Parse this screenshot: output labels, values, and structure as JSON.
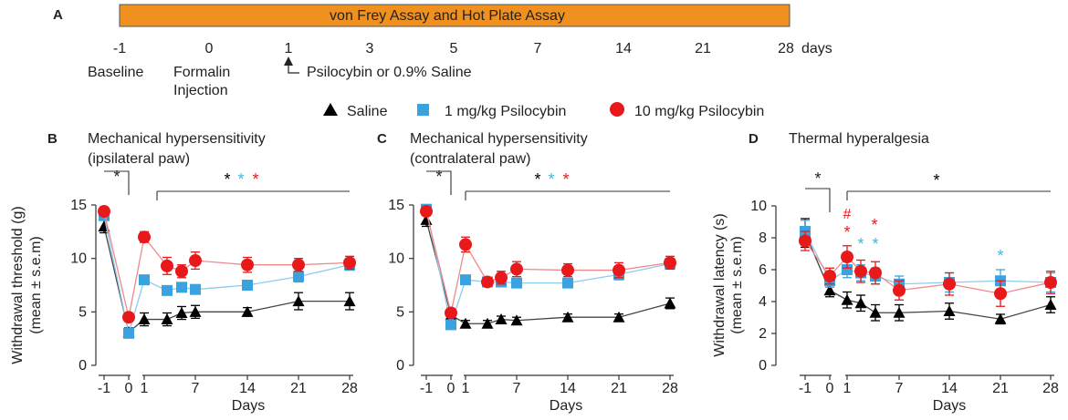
{
  "timeline": {
    "panel_letter": "A",
    "bar_label": "von Frey Assay and Hot Plate Assay",
    "bar_color": "#f0901e",
    "ticks": [
      "-1",
      "0",
      "1",
      "3",
      "5",
      "7",
      "14",
      "21",
      "28"
    ],
    "unit": "days",
    "baseline_label": "Baseline",
    "formalin_label_1": "Formalin",
    "formalin_label_2": "Injection",
    "treatment_label": "Psilocybin or 0.9% Saline"
  },
  "legend": {
    "saline": "Saline",
    "low_dose": "1 mg/kg Psilocybin",
    "high_dose": "10 mg/kg Psilocybin"
  },
  "colors": {
    "saline": "#000000",
    "low_dose": "#3aa3df",
    "high_dose": "#e8191b",
    "cyan_star": "#40b8e0"
  },
  "sig_star": "*",
  "sig_hash": "#",
  "chart_data": [
    {
      "panel": "B",
      "type": "line",
      "title": "Mechanical hypersensitivity",
      "subtitle": "(ipsilateral paw)",
      "xlabel": "Days",
      "ylabel": "Withdrawal threshold (g)",
      "ylabel2": "(mean ± s.e.m)",
      "ylim": [
        0,
        15
      ],
      "yticks": [
        0,
        5,
        10,
        15
      ],
      "xticks": [
        "-1",
        "0",
        "1",
        "7",
        "14",
        "21",
        "28"
      ],
      "x": [
        -1,
        0,
        1,
        3,
        5,
        7,
        14,
        21,
        28
      ],
      "series": [
        {
          "name": "Saline",
          "values": [
            13.0,
            3.1,
            4.3,
            4.3,
            4.9,
            5.0,
            5.0,
            6.0,
            6.0
          ],
          "errors": [
            0.6,
            0.4,
            0.6,
            0.6,
            0.6,
            0.6,
            0.4,
            0.8,
            0.8
          ]
        },
        {
          "name": "1 mg/kg Psilocybin",
          "values": [
            14.0,
            3.0,
            8.0,
            7.0,
            7.3,
            7.1,
            7.5,
            8.3,
            9.4
          ],
          "errors": [
            0.4,
            0.4,
            0.4,
            0.4,
            0.4,
            0.4,
            0.4,
            0.5,
            0.5
          ]
        },
        {
          "name": "10 mg/kg Psilocybin",
          "values": [
            14.4,
            4.5,
            12.0,
            9.3,
            8.8,
            9.8,
            9.4,
            9.4,
            9.6
          ],
          "errors": [
            0.4,
            0.4,
            0.5,
            0.8,
            0.6,
            0.8,
            0.7,
            0.6,
            0.6
          ]
        }
      ]
    },
    {
      "panel": "C",
      "type": "line",
      "title": "Mechanical hypersensitivity",
      "subtitle": "(contralateral paw)",
      "xlabel": "Days",
      "ylabel": "",
      "ylabel2": "",
      "ylim": [
        0,
        15
      ],
      "yticks": [
        0,
        5,
        10,
        15
      ],
      "xticks": [
        "-1",
        "0",
        "1",
        "7",
        "14",
        "21",
        "28"
      ],
      "x": [
        -1,
        0,
        1,
        3,
        5,
        7,
        14,
        21,
        28
      ],
      "series": [
        {
          "name": "Saline",
          "values": [
            13.6,
            4.7,
            3.9,
            3.9,
            4.3,
            4.2,
            4.5,
            4.5,
            5.8
          ],
          "errors": [
            0.6,
            0.4,
            0.3,
            0.3,
            0.3,
            0.3,
            0.3,
            0.3,
            0.5
          ]
        },
        {
          "name": "1 mg/kg Psilocybin",
          "values": [
            14.6,
            3.8,
            8.0,
            7.8,
            7.8,
            7.7,
            7.7,
            8.5,
            9.5
          ],
          "errors": [
            0.4,
            0.4,
            0.4,
            0.4,
            0.4,
            0.4,
            0.4,
            0.5,
            0.5
          ]
        },
        {
          "name": "10 mg/kg Psilocybin",
          "values": [
            14.4,
            4.9,
            11.3,
            7.8,
            8.2,
            9.0,
            8.9,
            8.9,
            9.6
          ],
          "errors": [
            0.4,
            0.4,
            0.7,
            0.4,
            0.6,
            0.7,
            0.6,
            0.7,
            0.6
          ]
        }
      ]
    },
    {
      "panel": "D",
      "type": "line",
      "title": "Thermal hyperalgesia",
      "subtitle": "",
      "xlabel": "Days",
      "ylabel": "Withdrawal latency (s)",
      "ylabel2": "(mean ± s.e.m)",
      "ylim": [
        0,
        10
      ],
      "yticks": [
        0,
        2,
        4,
        6,
        8,
        10
      ],
      "xticks": [
        "-1",
        "0",
        "1",
        "7",
        "14",
        "21",
        "28"
      ],
      "x": [
        -1,
        0,
        1,
        3,
        5,
        7,
        14,
        21,
        28
      ],
      "series": [
        {
          "name": "Saline",
          "values": [
            8.3,
            4.7,
            4.1,
            3.9,
            3.3,
            3.3,
            3.4,
            2.9,
            3.8
          ],
          "errors": [
            0.9,
            0.4,
            0.5,
            0.5,
            0.5,
            0.5,
            0.5,
            0.3,
            0.5
          ]
        },
        {
          "name": "1 mg/kg Psilocybin",
          "values": [
            8.4,
            5.3,
            6.0,
            5.8,
            5.6,
            5.1,
            5.2,
            5.3,
            5.2
          ],
          "errors": [
            0.7,
            0.4,
            0.5,
            0.5,
            0.5,
            0.5,
            0.6,
            0.7,
            0.6
          ]
        },
        {
          "name": "10 mg/kg Psilocybin",
          "values": [
            7.8,
            5.6,
            6.8,
            5.9,
            5.8,
            4.7,
            5.1,
            4.5,
            5.2
          ],
          "errors": [
            0.6,
            0.5,
            0.7,
            0.7,
            0.7,
            0.6,
            0.7,
            0.8,
            0.7
          ]
        }
      ]
    }
  ]
}
